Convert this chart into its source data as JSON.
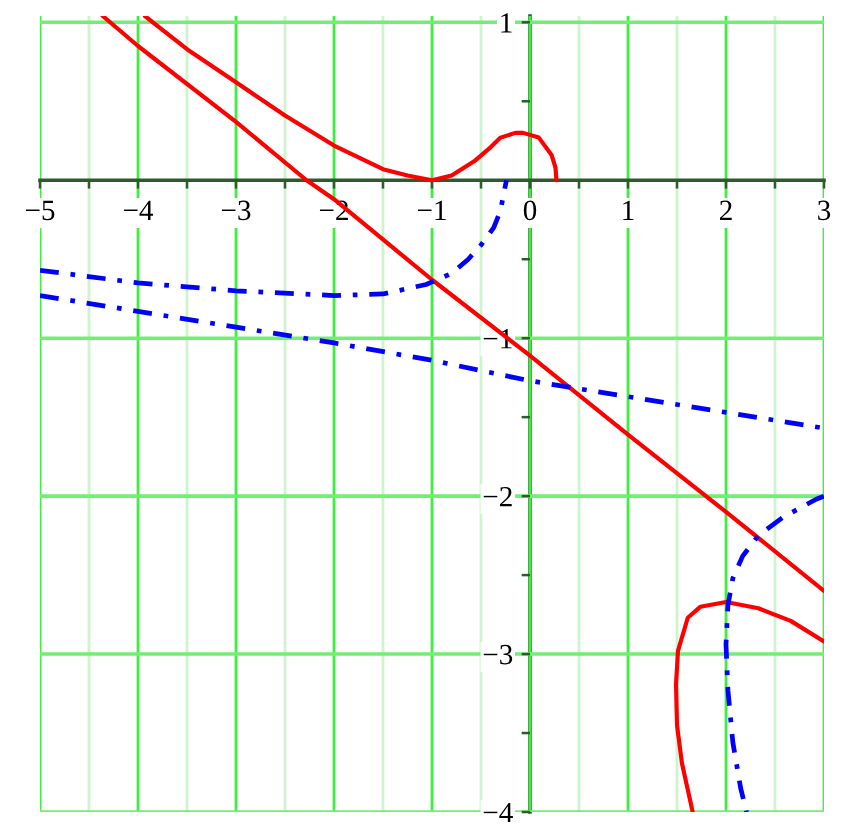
{
  "chart_data": {
    "type": "line",
    "xlim": [
      -5,
      3
    ],
    "ylim": [
      -4,
      1.04
    ],
    "xticks": [
      {
        "value": -5,
        "label": "−5"
      },
      {
        "value": -4.5,
        "label": null
      },
      {
        "value": -4,
        "label": "−4"
      },
      {
        "value": -3.5,
        "label": null
      },
      {
        "value": -3,
        "label": "−3"
      },
      {
        "value": -2.5,
        "label": null
      },
      {
        "value": -2,
        "label": "−2"
      },
      {
        "value": -1.5,
        "label": null
      },
      {
        "value": -1,
        "label": "−1"
      },
      {
        "value": -0.5,
        "label": null
      },
      0,
      {
        "value": 0.5,
        "label": null
      },
      1,
      {
        "value": 1.5,
        "label": null
      },
      2,
      {
        "value": 2.5,
        "label": null
      },
      3
    ],
    "yticks": [
      {
        "value": -4,
        "label": "−4"
      },
      {
        "value": -3.5,
        "label": null
      },
      {
        "value": -3,
        "label": "−3"
      },
      {
        "value": -2.5,
        "label": null
      },
      {
        "value": -2,
        "label": "−2"
      },
      {
        "value": -1.5,
        "label": null
      },
      {
        "value": -1,
        "label": "−1"
      },
      {
        "value": -0.5,
        "label": null
      },
      {
        "value": 0.5,
        "label": null
      },
      1
    ],
    "grid": true,
    "series": [
      {
        "color": "#ff0000",
        "line_style": "solid",
        "x": [
          -4.36,
          -4,
          -3,
          -2.28,
          -2,
          -1,
          0,
          1,
          2,
          3
        ],
        "values": [
          1.04,
          0.85,
          0.37,
          0,
          -0.12,
          -0.63,
          -1.11,
          -1.61,
          -2.1,
          -2.6
        ]
      },
      {
        "color": "#ff0000",
        "line_style": "solid",
        "x": [
          -3.93,
          -3.5,
          -3,
          -2.5,
          -2,
          -1.5,
          -1.25,
          -1,
          -0.8,
          -0.57,
          -0.4,
          -0.3,
          -0.15,
          -0.07,
          0.09,
          0.22,
          0.26,
          0.27
        ],
        "values": [
          1.04,
          0.83,
          0.62,
          0.41,
          0.22,
          0.07,
          0.03,
          0,
          0.03,
          0.12,
          0.21,
          0.27,
          0.3,
          0.3,
          0.27,
          0.16,
          0.08,
          0
        ]
      },
      {
        "color": "#ff0000",
        "line_style": "solid",
        "x": [
          1.66,
          1.55,
          1.5,
          1.49,
          1.51,
          1.61,
          1.74,
          2,
          2.33,
          2.66,
          3
        ],
        "values": [
          -4,
          -3.69,
          -3.45,
          -3.19,
          -2.98,
          -2.77,
          -2.7,
          -2.67,
          -2.71,
          -2.79,
          -2.92
        ]
      },
      {
        "color": "#0000ff",
        "line_style": "dashdot",
        "x": [
          -5,
          -4,
          -3,
          -2,
          -1,
          0,
          1,
          2,
          3
        ],
        "values": [
          -0.73,
          -0.83,
          -0.93,
          -1.03,
          -1.14,
          -1.27,
          -1.37,
          -1.47,
          -1.57
        ]
      },
      {
        "color": "#0000ff",
        "line_style": "dashdot",
        "x": [
          -5,
          -4,
          -3,
          -2,
          -1.5,
          -1.06,
          -0.8,
          -0.63,
          -0.5,
          -0.37,
          -0.3,
          -0.27,
          -0.24
        ],
        "values": [
          -0.57,
          -0.65,
          -0.7,
          -0.73,
          -0.72,
          -0.66,
          -0.59,
          -0.5,
          -0.41,
          -0.3,
          -0.19,
          -0.09,
          0
        ]
      },
      {
        "color": "#0000ff",
        "line_style": "dashdot",
        "x": [
          3,
          2.92,
          2.59,
          2.33,
          2.17,
          2.07,
          2.02,
          2,
          2.02,
          2.07,
          2.15,
          2.21
        ],
        "values": [
          -2,
          -2.02,
          -2.13,
          -2.25,
          -2.38,
          -2.52,
          -2.69,
          -2.94,
          -3.23,
          -3.56,
          -3.85,
          -4
        ]
      }
    ]
  }
}
